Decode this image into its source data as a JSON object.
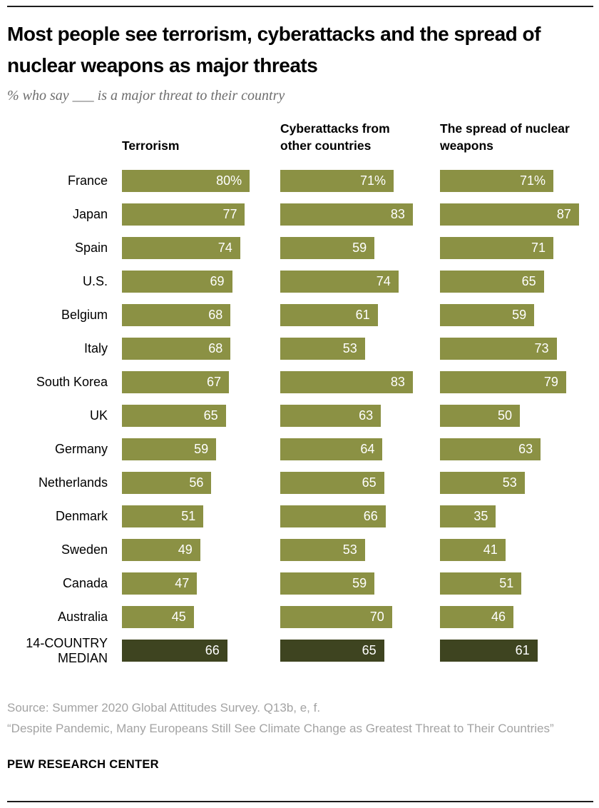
{
  "chart_data": {
    "type": "bar",
    "orientation": "horizontal",
    "title": "Most people see terrorism, cyberattacks and the spread of nuclear weapons as major threats",
    "subtitle": "% who say ___ is a major threat to their country",
    "categories": [
      "France",
      "Japan",
      "Spain",
      "U.S.",
      "Belgium",
      "Italy",
      "South Korea",
      "UK",
      "Germany",
      "Netherlands",
      "Denmark",
      "Sweden",
      "Canada",
      "Australia",
      "14-COUNTRY MEDIAN"
    ],
    "series": [
      {
        "name": "Terrorism",
        "values": [
          80,
          77,
          74,
          69,
          68,
          68,
          67,
          65,
          59,
          56,
          51,
          49,
          47,
          45,
          66
        ]
      },
      {
        "name": "Cyberattacks from other countries",
        "values": [
          71,
          83,
          59,
          74,
          61,
          53,
          83,
          63,
          64,
          65,
          66,
          53,
          59,
          70,
          65
        ]
      },
      {
        "name": "The spread of nuclear weapons",
        "values": [
          71,
          87,
          71,
          65,
          59,
          73,
          79,
          50,
          63,
          53,
          35,
          41,
          51,
          46,
          61
        ]
      }
    ],
    "unit": "%",
    "first_row_percent_suffix": true,
    "median_row_index": 14,
    "xlim": [
      0,
      100
    ],
    "grid": false,
    "legend_position": "column-headers",
    "bar_colors": {
      "default": "#8b9144",
      "median": "#3e4420"
    },
    "value_label_color": "#ffffff"
  },
  "footer": {
    "source": "Source: Summer 2020 Global Attitudes Survey. Q13b, e, f.",
    "report": "“Despite Pandemic, Many Europeans Still See Climate Change as Greatest Threat to Their Countries”",
    "brand": "PEW RESEARCH CENTER"
  }
}
